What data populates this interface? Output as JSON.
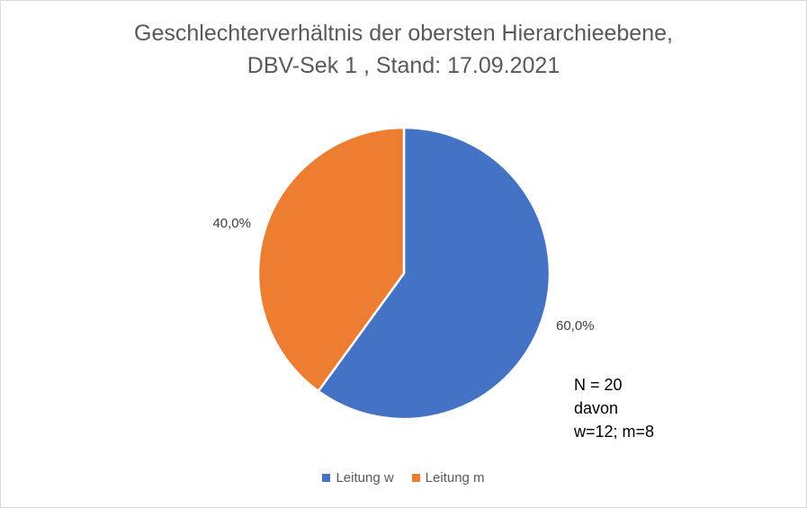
{
  "chart_data": {
    "type": "pie",
    "title": "Geschlechterverhältnis der obersten Hierarchieebene,",
    "subtitle": "DBV-Sek 1 , Stand: 17.09.2021",
    "slices": [
      {
        "label": "Leitung w",
        "value": 60.0,
        "display": "60,0%",
        "color": "#4472C4"
      },
      {
        "label": "Leitung m",
        "value": 40.0,
        "display": "40,0%",
        "color": "#ED7D31"
      }
    ],
    "legend_position": "bottom",
    "annotation": {
      "line1": "N = 20",
      "line2": "davon",
      "line3": "w=12; m=8"
    }
  }
}
